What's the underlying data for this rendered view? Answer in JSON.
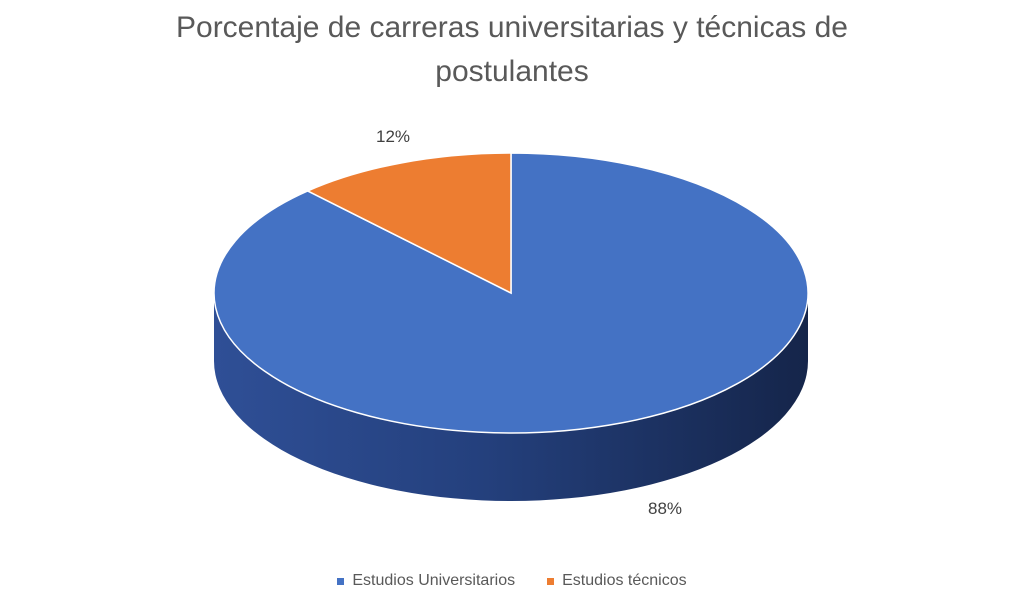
{
  "chart_data": {
    "type": "pie",
    "title": "Porcentaje de carreras universitarias y técnicas de postulantes",
    "categories": [
      "Estudios Universitarios",
      "Estudios técnicos"
    ],
    "values": [
      88,
      12
    ],
    "data_labels": [
      "88%",
      "12%"
    ],
    "colors": [
      "#4472C4",
      "#ED7D31"
    ],
    "style": "3d",
    "legend_position": "bottom"
  }
}
